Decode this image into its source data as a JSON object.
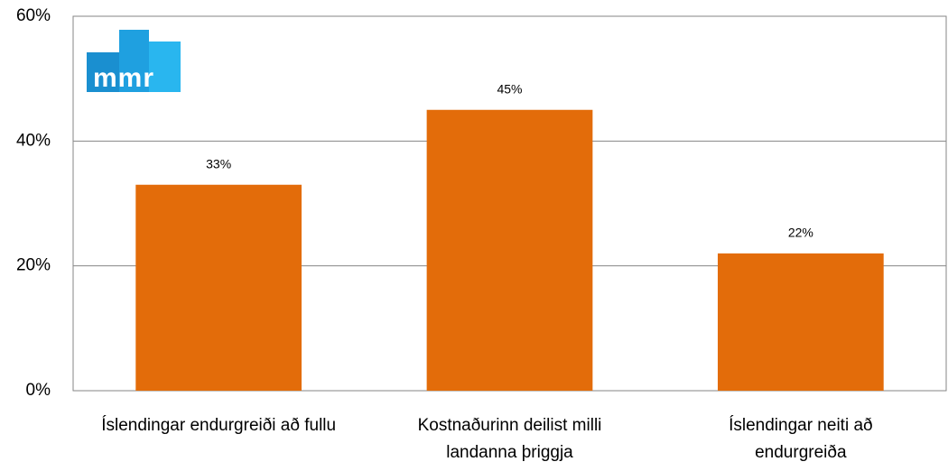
{
  "chart_data": {
    "type": "bar",
    "logo_text": "mmr",
    "categories": [
      "Íslendingar endurgreiði að fullu",
      "Kostnaðurinn deilist milli landanna þriggja",
      "Íslendingar neiti að endurgreiða"
    ],
    "values": [
      33,
      45,
      22
    ],
    "value_labels": [
      "33%",
      "45%",
      "22%"
    ],
    "color": "#e36c0a",
    "ylim": [
      0,
      60
    ],
    "yticks": [
      {
        "value": 0,
        "label": "0%"
      },
      {
        "value": 20,
        "label": "20%"
      },
      {
        "value": 40,
        "label": "40%"
      },
      {
        "value": 60,
        "label": "60%"
      }
    ],
    "grid": true
  }
}
